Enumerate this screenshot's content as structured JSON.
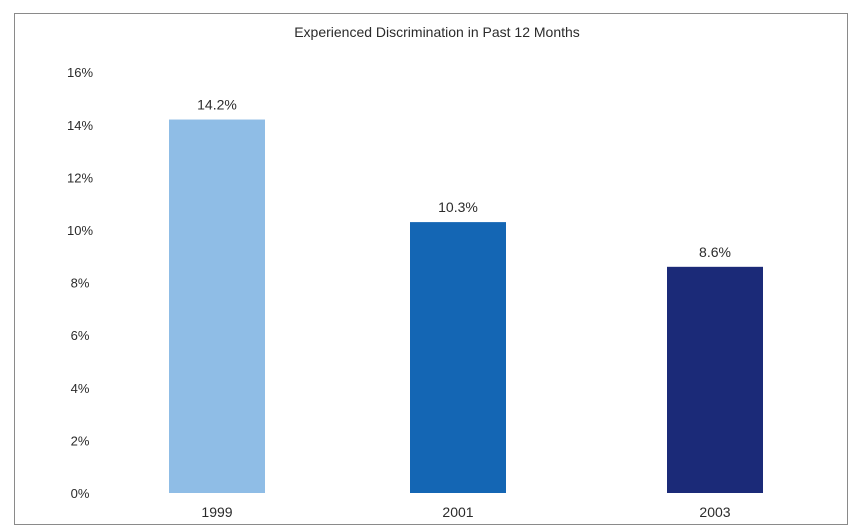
{
  "chart_data": {
    "type": "bar",
    "title": "Experienced Discrimination in Past 12 Months",
    "xlabel": "",
    "ylabel": "",
    "categories": [
      "1999",
      "2001",
      "2003"
    ],
    "values": [
      14.2,
      10.3,
      8.6
    ],
    "data_labels": [
      "14.2%",
      "10.3%",
      "8.6%"
    ],
    "ylim": [
      0,
      16
    ],
    "y_ticks": [
      "0%",
      "2%",
      "4%",
      "6%",
      "8%",
      "10%",
      "12%",
      "14%",
      "16%"
    ],
    "colors": [
      "#8fbde6",
      "#1466b4",
      "#1b2a78"
    ],
    "grid": false,
    "legend": "none"
  }
}
